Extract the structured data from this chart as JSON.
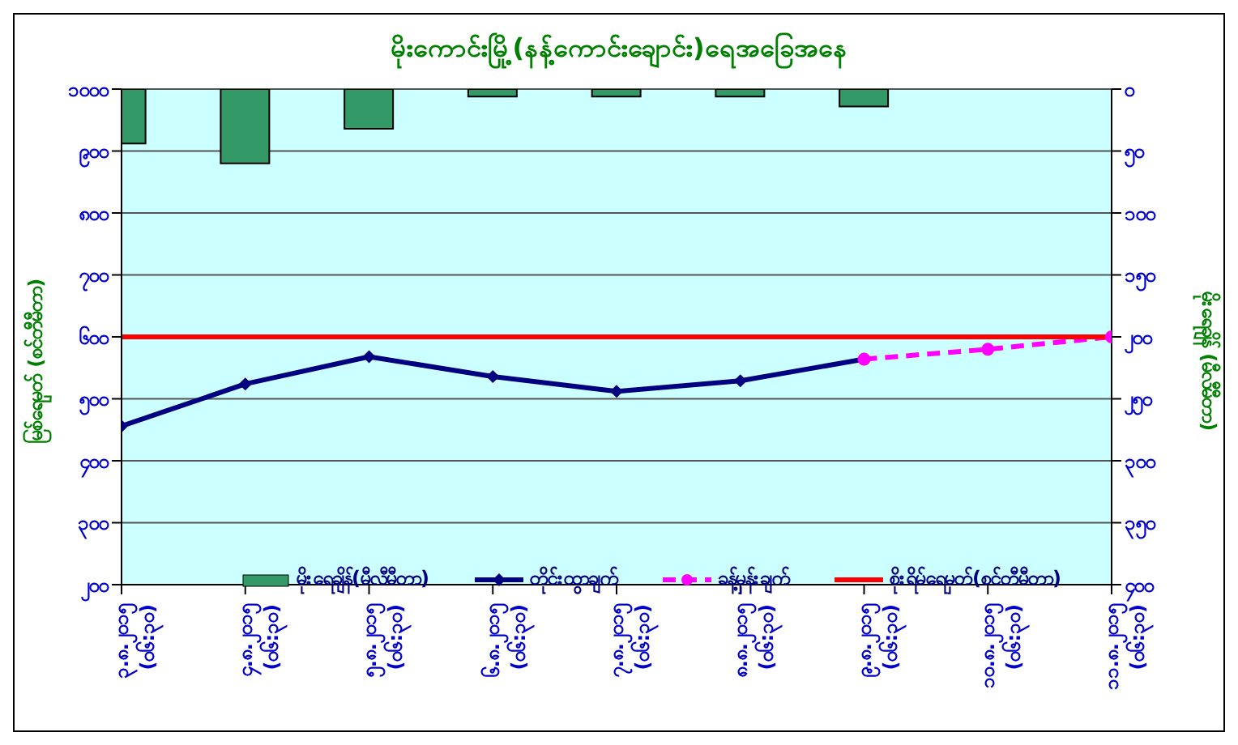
{
  "chart_data": {
    "type": "bar",
    "title": "မိုးကောင်းမြို့(နန့်ကောင်းချောင်း)ရေအခြေအနေ",
    "xlabel": null,
    "ylabel": "မြစ်ရေမှတ် (စင်တီမီတာ)",
    "y2label": "မိုးရေချိန် (မီလီမီတာ)",
    "categories": [
      "၃.၈.၂၀၁၅ (၀၆:၃၀)",
      "၄.၈.၂၀၁၅ (၀၆:၃၀)",
      "၅.၈.၂၀၁၅ (၀၆:၃၀)",
      "၆.၈.၂၀၁၅ (၀၆:၃၀)",
      "၇.၈.၂၀၁၅ (၀၆:၃၀)",
      "၈.၈.၂၀၁၅ (၀၆:၃၀)",
      "၉.၈.၂၀၁၅ (၀၆:၃၀)",
      "၁၀.၈.၂၀၁၅ (၀၆:၃၀)",
      "၁၁.၈.၂၀၁၅ (၀၆:၃၀)"
    ],
    "series": [
      {
        "name": "မိုးရေချိန်(မီလီမီတာ)",
        "axis": "y2",
        "color": "#339966",
        "values": [
          44,
          60,
          32,
          6,
          6,
          6,
          14,
          null,
          null
        ]
      },
      {
        "name": "တိုင်းထွာချက်",
        "type": "line",
        "color": "#000080",
        "marker": "diamond",
        "line_style": "solid",
        "values": [
          456,
          524,
          568,
          536,
          512,
          529,
          564,
          null,
          null
        ]
      },
      {
        "name": "ခန့်မှန်းချက်",
        "type": "line",
        "color": "#ff00ff",
        "marker": "circle",
        "line_style": "dashed",
        "values": [
          null,
          null,
          null,
          null,
          null,
          null,
          564,
          580,
          600
        ]
      }
    ],
    "ref_lines": [
      {
        "axis": "y",
        "value": 600,
        "label": "စိုးရိမ်ရေမှတ်(စင်တီမီတာ)",
        "color": "#ff0000",
        "line_style": "solid"
      }
    ],
    "ylim": [
      200,
      1000
    ],
    "yticks": [
      {
        "value": 200,
        "label": "၂၀၀"
      },
      {
        "value": 300,
        "label": "၃၀၀"
      },
      {
        "value": 400,
        "label": "၄၀၀"
      },
      {
        "value": 500,
        "label": "၅၀၀"
      },
      {
        "value": 600,
        "label": "၆၀၀"
      },
      {
        "value": 700,
        "label": "၇၀၀"
      },
      {
        "value": 800,
        "label": "၈၀၀"
      },
      {
        "value": 900,
        "label": "၉၀၀"
      },
      {
        "value": 1000,
        "label": "၁၀၀၀"
      }
    ],
    "y2lim": [
      400,
      0
    ],
    "y2ticks": [
      {
        "value": 0,
        "label": "၀"
      },
      {
        "value": 50,
        "label": "၅၀"
      },
      {
        "value": 100,
        "label": "၁၀၀"
      },
      {
        "value": 150,
        "label": "၁၅၀"
      },
      {
        "value": 200,
        "label": "၂၀၀"
      },
      {
        "value": 250,
        "label": "၂၅၀"
      },
      {
        "value": 300,
        "label": "၃၀၀"
      },
      {
        "value": 350,
        "label": "၃၅၀"
      },
      {
        "value": 400,
        "label": "၄၀၀"
      }
    ],
    "grid": "y",
    "legend": "bottom"
  }
}
